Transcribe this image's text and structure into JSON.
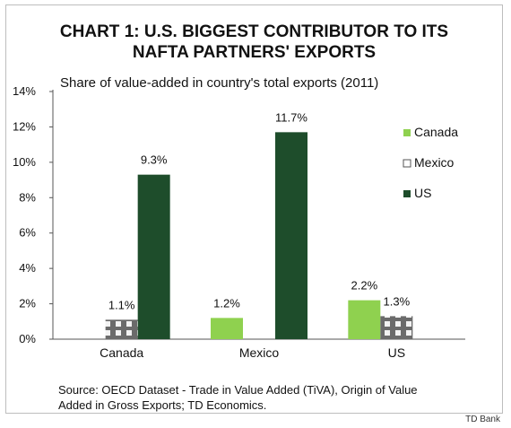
{
  "credit": "TD Bank",
  "chart_data": {
    "type": "bar",
    "title_line1": "CHART 1: U.S. BIGGEST CONTRIBUTOR TO ITS",
    "title_line2": "NAFTA PARTNERS' EXPORTS",
    "subtitle": "Share of value-added in country's total exports (2011)",
    "categories": [
      "Canada",
      "Mexico",
      "US"
    ],
    "series": [
      {
        "name": "Canada",
        "values": [
          null,
          1.2,
          2.2
        ],
        "color": "#8fd14f"
      },
      {
        "name": "Mexico",
        "values": [
          1.1,
          null,
          1.3
        ],
        "color": "#e0e0e0"
      },
      {
        "name": "US",
        "values": [
          9.3,
          11.7,
          null
        ],
        "color": "#1e4d2b"
      }
    ],
    "data_labels": [
      {
        "series": "Mexico",
        "category": "Canada",
        "text": "1.1%"
      },
      {
        "series": "US",
        "category": "Canada",
        "text": "9.3%"
      },
      {
        "series": "Canada",
        "category": "Mexico",
        "text": "1.2%"
      },
      {
        "series": "US",
        "category": "Mexico",
        "text": "11.7%"
      },
      {
        "series": "Canada",
        "category": "US",
        "text": "2.2%"
      },
      {
        "series": "Mexico",
        "category": "US",
        "text": "1.3%"
      }
    ],
    "y_ticks": [
      "0%",
      "2%",
      "4%",
      "6%",
      "8%",
      "10%",
      "12%",
      "14%"
    ],
    "ylim": [
      0,
      14
    ],
    "grid": false,
    "legend_position": "right",
    "xlabel": "",
    "ylabel": "",
    "source": "Source: OECD Dataset - Trade in Value Added (TiVA), Origin of Value Added in Gross Exports; TD Economics."
  }
}
